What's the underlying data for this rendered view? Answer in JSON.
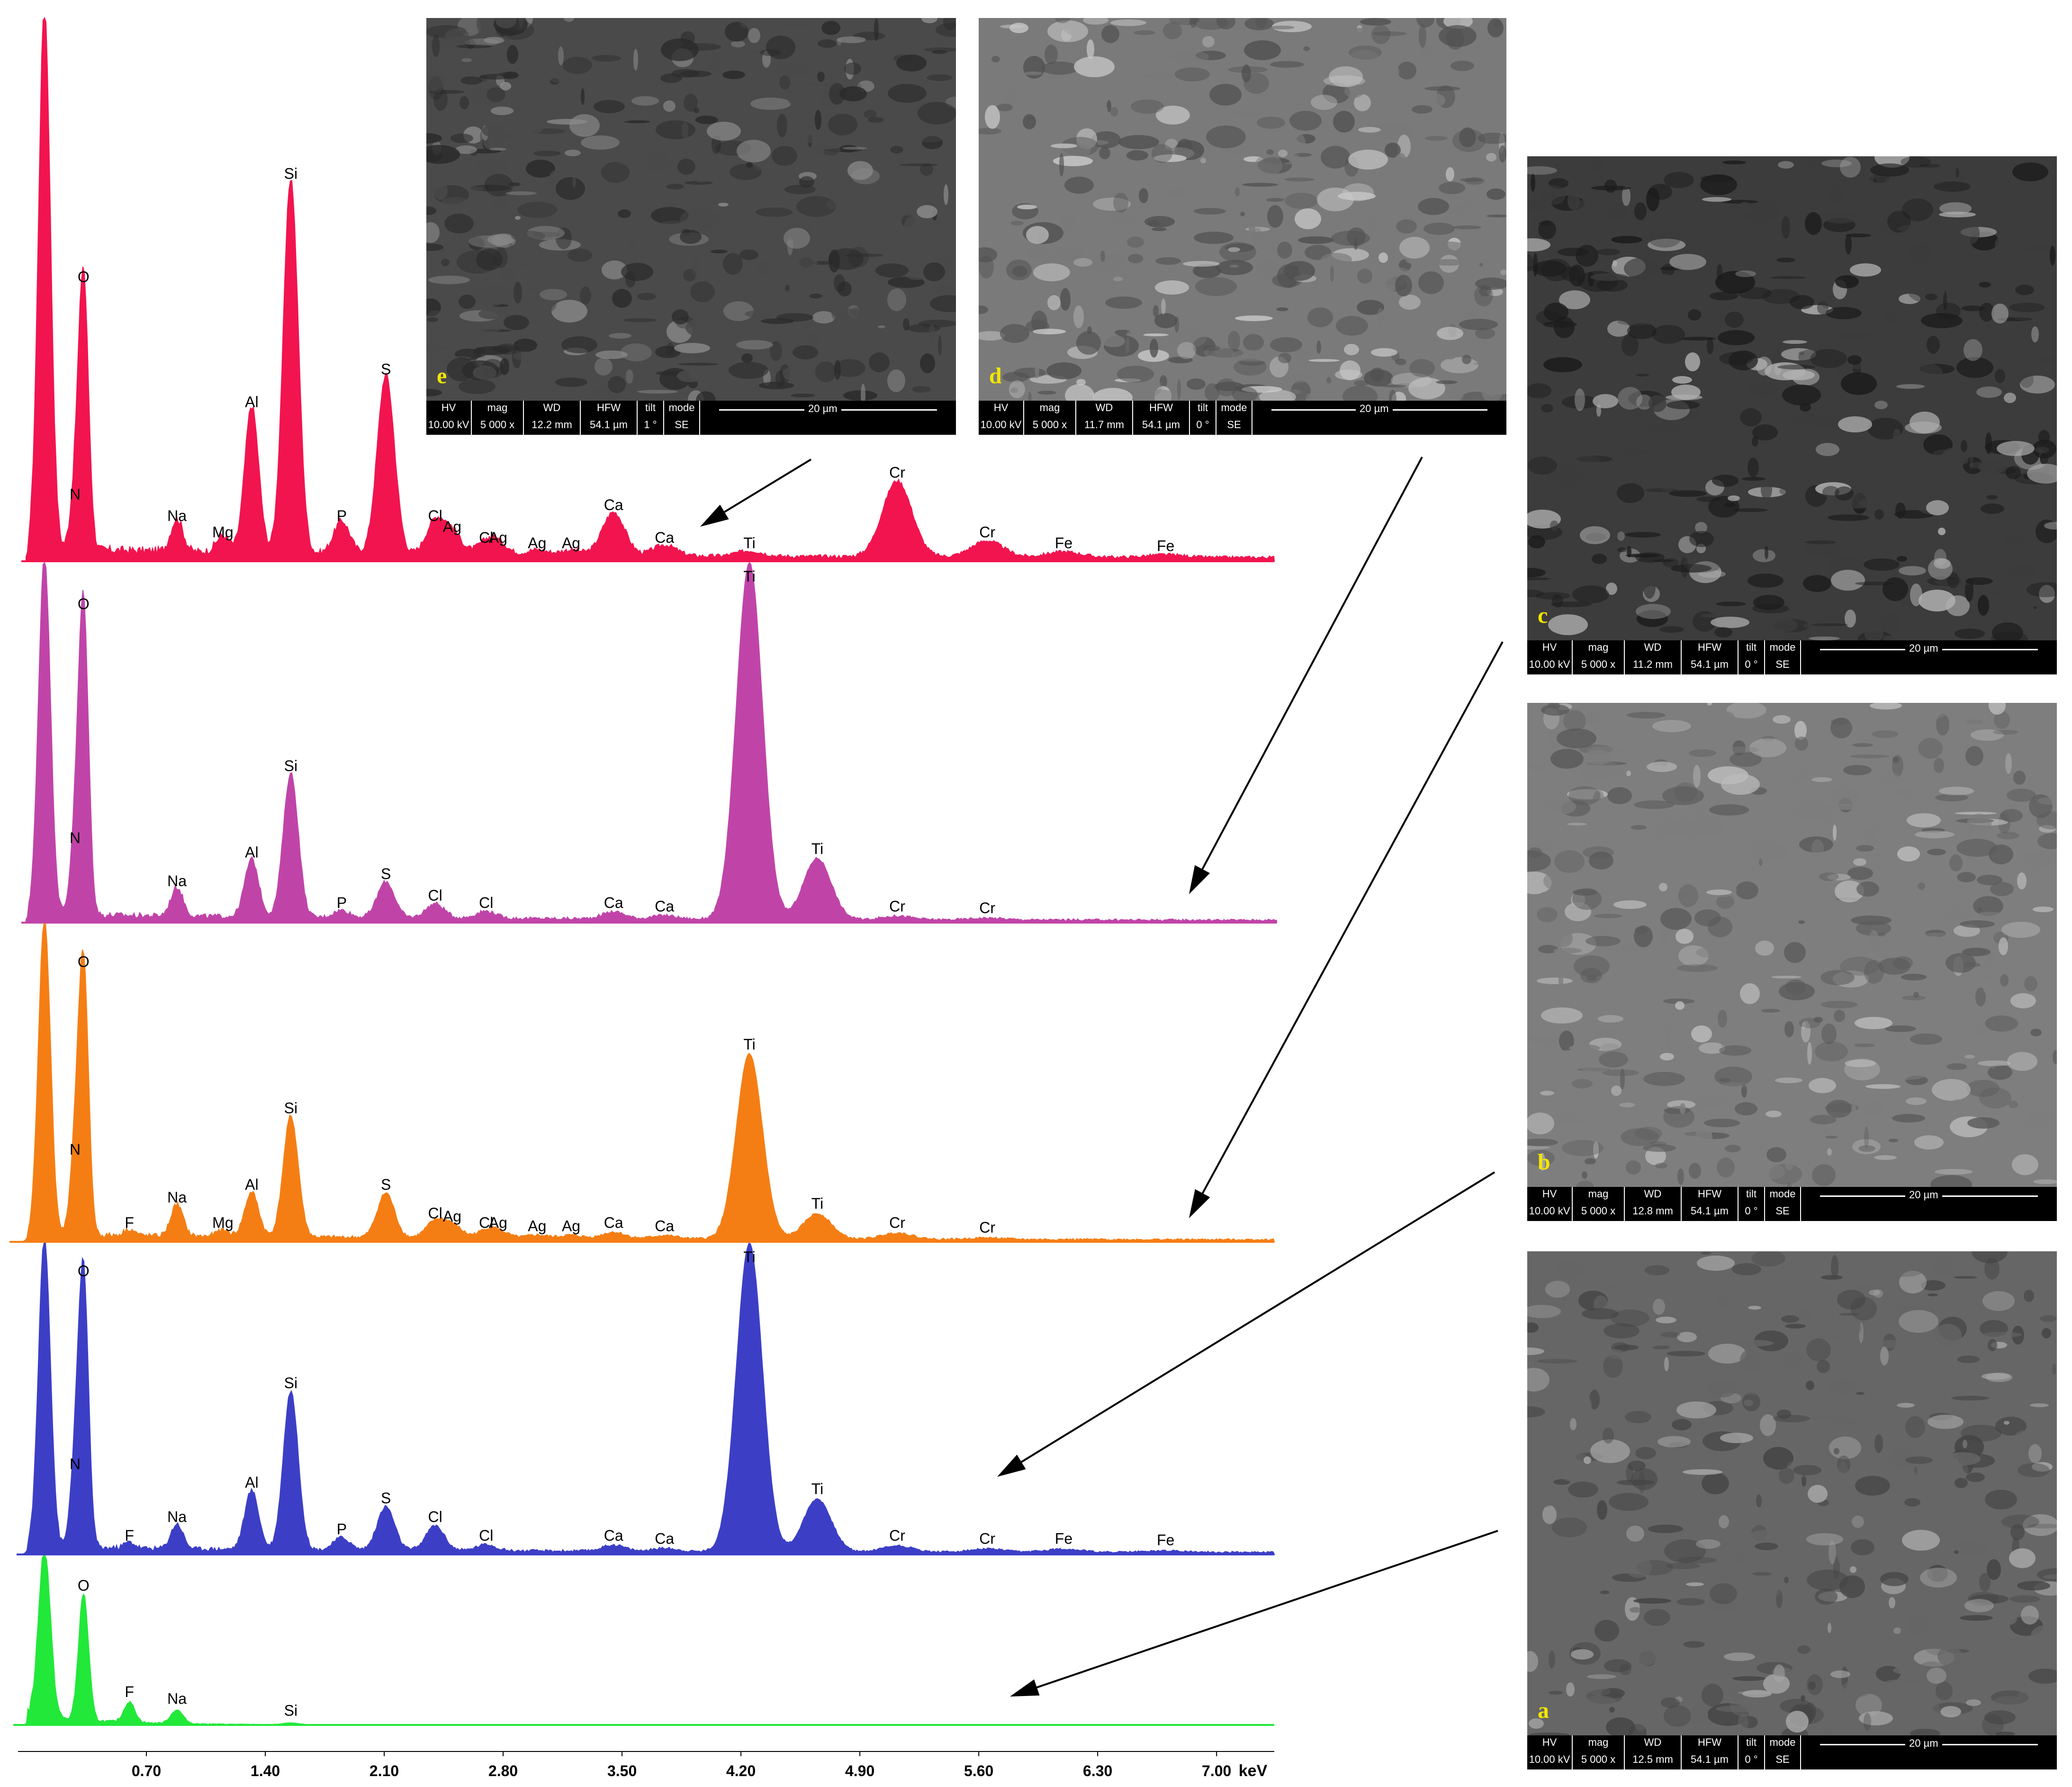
{
  "colors": {
    "trace_e": "#f2144e",
    "trace_d": "#c044a8",
    "trace_c": "#f57e14",
    "trace_b": "#3c3fc6",
    "trace_a": "#22e83a",
    "sem_letter": "#f2e600"
  },
  "chart_data": {
    "type": "line",
    "xlabel": "keV",
    "xlim": [
      0,
      7.45
    ],
    "xticks": [
      "0.70",
      "1.40",
      "2.10",
      "2.80",
      "3.50",
      "4.20",
      "4.90",
      "5.60",
      "6.30",
      "7.00"
    ],
    "xtick_values": [
      0.7,
      1.4,
      2.1,
      2.8,
      3.5,
      4.2,
      4.9,
      5.6,
      6.3,
      7.0
    ],
    "series": [
      {
        "name": "e",
        "peaks": [
          {
            "label": "",
            "x": 0.1,
            "h": 1.0
          },
          {
            "label": "N",
            "x": 0.28,
            "h": 0.1
          },
          {
            "label": "O",
            "x": 0.33,
            "h": 0.5
          },
          {
            "label": "Na",
            "x": 0.88,
            "h": 0.06
          },
          {
            "label": "Mg",
            "x": 1.15,
            "h": 0.03
          },
          {
            "label": "Al",
            "x": 1.32,
            "h": 0.27
          },
          {
            "label": "Si",
            "x": 1.55,
            "h": 0.69
          },
          {
            "label": "P",
            "x": 1.85,
            "h": 0.06
          },
          {
            "label": "S",
            "x": 2.11,
            "h": 0.33
          },
          {
            "label": "Ag",
            "x": 2.5,
            "h": 0.04
          },
          {
            "label": "Cl",
            "x": 2.4,
            "h": 0.06
          },
          {
            "label": "Cl",
            "x": 2.7,
            "h": 0.02
          },
          {
            "label": "Ag",
            "x": 2.77,
            "h": 0.02
          },
          {
            "label": "Ag",
            "x": 3.0,
            "h": 0.01
          },
          {
            "label": "Ag",
            "x": 3.2,
            "h": 0.01
          },
          {
            "label": "Ca",
            "x": 3.45,
            "h": 0.08
          },
          {
            "label": "Ca",
            "x": 3.75,
            "h": 0.02
          },
          {
            "label": "Ti",
            "x": 4.25,
            "h": 0.01
          },
          {
            "label": "Cr",
            "x": 5.12,
            "h": 0.14
          },
          {
            "label": "Cr",
            "x": 5.65,
            "h": 0.03
          },
          {
            "label": "Fe",
            "x": 6.1,
            "h": 0.01
          },
          {
            "label": "Fe",
            "x": 6.7,
            "h": 0.005
          }
        ]
      },
      {
        "name": "d",
        "peaks": [
          {
            "label": "",
            "x": 0.1,
            "h": 1.0
          },
          {
            "label": "N",
            "x": 0.28,
            "h": 0.2
          },
          {
            "label": "O",
            "x": 0.33,
            "h": 0.85
          },
          {
            "label": "Na",
            "x": 0.88,
            "h": 0.08
          },
          {
            "label": "Al",
            "x": 1.32,
            "h": 0.16
          },
          {
            "label": "Si",
            "x": 1.55,
            "h": 0.4
          },
          {
            "label": "P",
            "x": 1.85,
            "h": 0.02
          },
          {
            "label": "S",
            "x": 2.11,
            "h": 0.1
          },
          {
            "label": "Cl",
            "x": 2.4,
            "h": 0.04
          },
          {
            "label": "Cl",
            "x": 2.7,
            "h": 0.02
          },
          {
            "label": "Ca",
            "x": 3.45,
            "h": 0.02
          },
          {
            "label": "Ca",
            "x": 3.75,
            "h": 0.01
          },
          {
            "label": "Ti",
            "x": 4.25,
            "h": 0.99
          },
          {
            "label": "Ti",
            "x": 4.65,
            "h": 0.17
          },
          {
            "label": "Cr",
            "x": 5.12,
            "h": 0.01
          },
          {
            "label": "Cr",
            "x": 5.65,
            "h": 0.005
          }
        ]
      },
      {
        "name": "c",
        "peaks": [
          {
            "label": "",
            "x": 0.1,
            "h": 1.0
          },
          {
            "label": "N",
            "x": 0.28,
            "h": 0.25
          },
          {
            "label": "O",
            "x": 0.33,
            "h": 0.84
          },
          {
            "label": "F",
            "x": 0.6,
            "h": 0.02
          },
          {
            "label": "Na",
            "x": 0.88,
            "h": 0.1
          },
          {
            "label": "Mg",
            "x": 1.15,
            "h": 0.02
          },
          {
            "label": "Al",
            "x": 1.32,
            "h": 0.14
          },
          {
            "label": "Si",
            "x": 1.55,
            "h": 0.38
          },
          {
            "label": "S",
            "x": 2.11,
            "h": 0.14
          },
          {
            "label": "Ag",
            "x": 2.5,
            "h": 0.04
          },
          {
            "label": "Cl",
            "x": 2.4,
            "h": 0.05
          },
          {
            "label": "Cl",
            "x": 2.7,
            "h": 0.02
          },
          {
            "label": "Ag",
            "x": 2.77,
            "h": 0.02
          },
          {
            "label": "Ag",
            "x": 3.0,
            "h": 0.01
          },
          {
            "label": "Ag",
            "x": 3.2,
            "h": 0.01
          },
          {
            "label": "Ca",
            "x": 3.45,
            "h": 0.02
          },
          {
            "label": "Ca",
            "x": 3.75,
            "h": 0.01
          },
          {
            "label": "Ti",
            "x": 4.25,
            "h": 0.58
          },
          {
            "label": "Ti",
            "x": 4.65,
            "h": 0.08
          },
          {
            "label": "Cr",
            "x": 5.12,
            "h": 0.02
          },
          {
            "label": "Cr",
            "x": 5.65,
            "h": 0.005
          }
        ]
      },
      {
        "name": "b",
        "peaks": [
          {
            "label": "",
            "x": 0.1,
            "h": 1.0
          },
          {
            "label": "N",
            "x": 0.28,
            "h": 0.25
          },
          {
            "label": "O",
            "x": 0.33,
            "h": 0.87
          },
          {
            "label": "F",
            "x": 0.6,
            "h": 0.02
          },
          {
            "label": "Na",
            "x": 0.88,
            "h": 0.08
          },
          {
            "label": "Al",
            "x": 1.32,
            "h": 0.19
          },
          {
            "label": "Si",
            "x": 1.55,
            "h": 0.51
          },
          {
            "label": "P",
            "x": 1.85,
            "h": 0.04
          },
          {
            "label": "S",
            "x": 2.11,
            "h": 0.14
          },
          {
            "label": "Cl",
            "x": 2.4,
            "h": 0.08
          },
          {
            "label": "Cl",
            "x": 2.7,
            "h": 0.02
          },
          {
            "label": "Ca",
            "x": 3.45,
            "h": 0.02
          },
          {
            "label": "Ca",
            "x": 3.75,
            "h": 0.01
          },
          {
            "label": "Ti",
            "x": 4.25,
            "h": 0.99
          },
          {
            "label": "Ti",
            "x": 4.65,
            "h": 0.17
          },
          {
            "label": "Cr",
            "x": 5.12,
            "h": 0.02
          },
          {
            "label": "Cr",
            "x": 5.65,
            "h": 0.01
          },
          {
            "label": "Fe",
            "x": 6.1,
            "h": 0.01
          },
          {
            "label": "Fe",
            "x": 6.7,
            "h": 0.005
          }
        ]
      },
      {
        "name": "a",
        "peaks": [
          {
            "label": "",
            "x": 0.1,
            "h": 1.0
          },
          {
            "label": "O",
            "x": 0.33,
            "h": 0.75
          },
          {
            "label": "F",
            "x": 0.6,
            "h": 0.12
          },
          {
            "label": "Na",
            "x": 0.88,
            "h": 0.08
          },
          {
            "label": "Si",
            "x": 1.55,
            "h": 0.01
          }
        ]
      }
    ]
  },
  "sem_panels": [
    {
      "letter": "e",
      "hv": "10.00 kV",
      "mag": "5 000 x",
      "wd": "12.2 mm",
      "hfw": "54.1 µm",
      "tilt": "1 °",
      "mode": "SE",
      "scale": "20 µm"
    },
    {
      "letter": "d",
      "hv": "10.00 kV",
      "mag": "5 000 x",
      "wd": "11.7 mm",
      "hfw": "54.1 µm",
      "tilt": "0 °",
      "mode": "SE",
      "scale": "20 µm"
    },
    {
      "letter": "c",
      "hv": "10.00 kV",
      "mag": "5 000 x",
      "wd": "11.2 mm",
      "hfw": "54.1 µm",
      "tilt": "0 °",
      "mode": "SE",
      "scale": "20 µm"
    },
    {
      "letter": "b",
      "hv": "10.00 kV",
      "mag": "5 000 x",
      "wd": "12.8 mm",
      "hfw": "54.1 µm",
      "tilt": "0 °",
      "mode": "SE",
      "scale": "20 µm"
    },
    {
      "letter": "a",
      "hv": "10.00 kV",
      "mag": "5 000 x",
      "wd": "12.5 mm",
      "hfw": "54.1 µm",
      "tilt": "0 °",
      "mode": "SE",
      "scale": "20 µm"
    }
  ],
  "databar_headers": {
    "hv": "HV",
    "mag": "mag",
    "wd": "WD",
    "hfw": "HFW",
    "tilt": "tilt",
    "mode": "mode"
  }
}
